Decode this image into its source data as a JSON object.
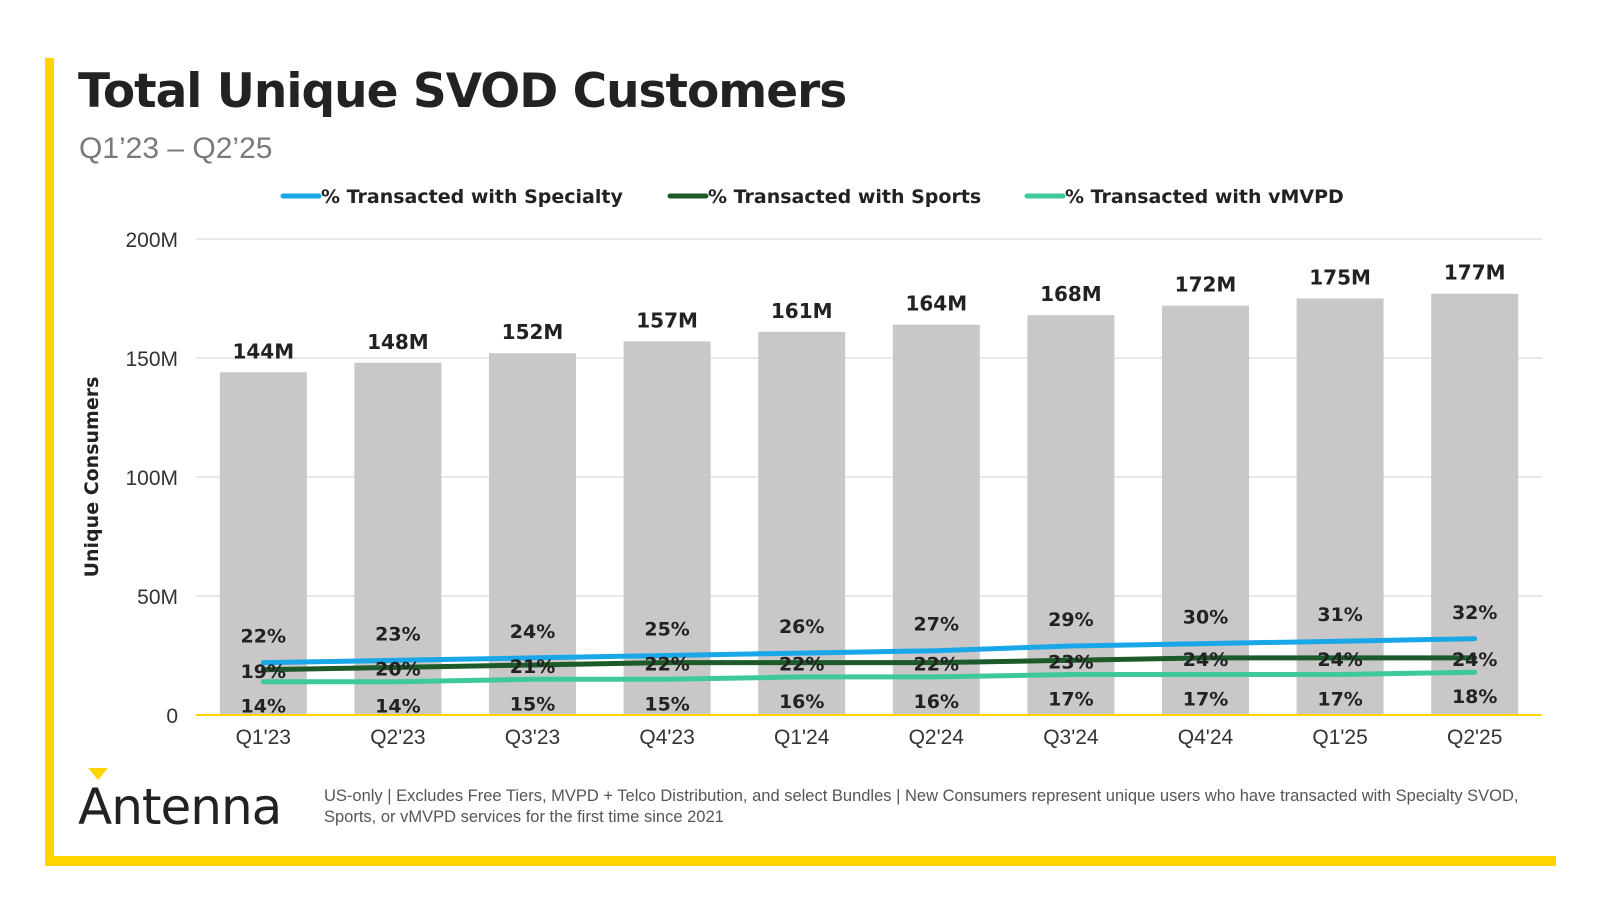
{
  "colors": {
    "frame": "#ffd400",
    "bar": "#c9c7c7",
    "grid": "#d9d9d9",
    "axis": "#ffd400",
    "specialty": "#1aa7e8",
    "sports": "#1c5a2a",
    "vmvpd": "#3ec99a",
    "text_dark": "#222222",
    "text_muted": "#7a7a7a"
  },
  "header": {
    "title": "Total Unique SVOD Customers",
    "subtitle": "Q1’23 – Q2’25"
  },
  "footer": {
    "logo_text": "Antenna",
    "logo_icon": "antenna-caret-icon",
    "footnote": "US-only | Excludes Free Tiers, MVPD + Telco Distribution, and select Bundles | New Consumers represent unique users who have transacted with Specialty SVOD, Sports, or vMVPD services for the first time since 2021"
  },
  "chart_data": {
    "type": "bar",
    "title": "Total Unique SVOD Customers",
    "subtitle": "Q1’23 – Q2’25",
    "xlabel": "",
    "ylabel": "Unique Consumers",
    "ylim": [
      0,
      200
    ],
    "yticks": [
      0,
      50,
      100,
      150,
      200
    ],
    "ytick_labels": [
      "0",
      "50M",
      "100M",
      "150M",
      "200M"
    ],
    "grid": true,
    "legend_position": "top",
    "categories": [
      "Q1'23",
      "Q2'23",
      "Q3'23",
      "Q4'23",
      "Q1'24",
      "Q2'24",
      "Q3'24",
      "Q4'24",
      "Q1'25",
      "Q2'25"
    ],
    "bars": {
      "name": "Unique Consumers",
      "values": [
        144,
        148,
        152,
        157,
        161,
        164,
        168,
        172,
        175,
        177
      ],
      "labels": [
        "144M",
        "148M",
        "152M",
        "157M",
        "161M",
        "164M",
        "168M",
        "172M",
        "175M",
        "177M"
      ]
    },
    "series": [
      {
        "name": "% Transacted with Specialty",
        "color_key": "specialty",
        "values": [
          22,
          23,
          24,
          25,
          26,
          27,
          29,
          30,
          31,
          32
        ],
        "labels": [
          "22%",
          "23%",
          "24%",
          "25%",
          "26%",
          "27%",
          "29%",
          "30%",
          "31%",
          "32%"
        ]
      },
      {
        "name": "% Transacted with Sports",
        "color_key": "sports",
        "values": [
          19,
          20,
          21,
          22,
          22,
          22,
          23,
          24,
          24,
          24
        ],
        "labels": [
          "19%",
          "20%",
          "21%",
          "22%",
          "22%",
          "22%",
          "23%",
          "24%",
          "24%",
          "24%"
        ]
      },
      {
        "name": "% Transacted with vMVPD",
        "color_key": "vmvpd",
        "values": [
          14,
          14,
          15,
          15,
          16,
          16,
          17,
          17,
          17,
          18
        ],
        "labels": [
          "14%",
          "14%",
          "15%",
          "15%",
          "16%",
          "16%",
          "17%",
          "17%",
          "17%",
          "18%"
        ]
      }
    ]
  }
}
